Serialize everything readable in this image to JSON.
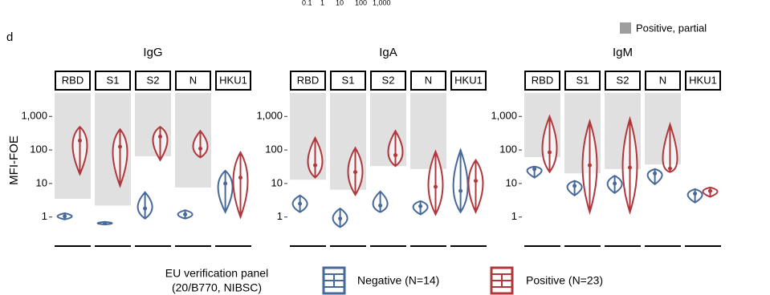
{
  "panel_label": "d",
  "fragment_ticks": [
    "0.1",
    "1",
    "10",
    "100",
    "1,000"
  ],
  "partial_legend": {
    "name": "Positive, partial",
    "color": "#9e9e9e"
  },
  "legend": {
    "title": [
      "EU verification panel",
      "(20/B770, NIBSC)"
    ],
    "items": [
      {
        "name": "Negative (N=14)",
        "color": "#46699a"
      },
      {
        "name": "Positive (N=23)",
        "color": "#b0383c"
      }
    ]
  },
  "chart_data": [
    {
      "type": "violin",
      "title": "IgG",
      "ylabel": "MFI-FOE",
      "log": true,
      "ylim": [
        0.2,
        5000
      ],
      "yticks": [
        1,
        10,
        100,
        {
          "value": 1000,
          "label": "1,000"
        }
      ],
      "facets": [
        "RBD",
        "S1",
        "S2",
        "N",
        "HKU1"
      ],
      "threshold_color": "#e0e0e0",
      "thresholds": [
        3.5,
        2.2,
        65,
        7.6,
        null
      ],
      "series": [
        {
          "color": "#46699a",
          "min": [
            0.85,
            0.6,
            0.9,
            0.9,
            1.4
          ],
          "median": [
            1.05,
            0.65,
            1.8,
            1.2,
            10
          ],
          "max": [
            1.3,
            0.72,
            5.5,
            1.6,
            24
          ]
        },
        {
          "color": "#b0383c",
          "min": [
            19,
            8.5,
            50,
            60,
            1.0
          ],
          "median": [
            190,
            125,
            250,
            110,
            15
          ],
          "max": [
            490,
            415,
            490,
            370,
            85
          ]
        }
      ]
    },
    {
      "type": "violin",
      "title": "IgA",
      "log": true,
      "ylim": [
        0.2,
        5000
      ],
      "yticks": [
        1,
        10,
        100,
        {
          "value": 1000,
          "label": "1,000"
        }
      ],
      "facets": [
        "RBD",
        "S1",
        "S2",
        "N",
        "HKU1"
      ],
      "threshold_color": "#e0e0e0",
      "thresholds": [
        13,
        6.5,
        33,
        27,
        null
      ],
      "series": [
        {
          "color": "#46699a",
          "min": [
            1.4,
            0.5,
            1.4,
            1.2,
            1.4
          ],
          "median": [
            2.5,
            0.9,
            2.2,
            2.1,
            6
          ],
          "max": [
            4.4,
            1.8,
            5.8,
            3,
            100
          ]
        },
        {
          "color": "#b0383c",
          "min": [
            15,
            4.6,
            33,
            1.2,
            1.4
          ],
          "median": [
            35,
            22,
            70,
            8,
            12
          ],
          "max": [
            230,
            115,
            370,
            90,
            50
          ]
        }
      ]
    },
    {
      "type": "violin",
      "title": "IgM",
      "log": true,
      "ylim": [
        0.2,
        5000
      ],
      "yticks": [
        1,
        10,
        100,
        {
          "value": 1000,
          "label": "1,000"
        }
      ],
      "facets": [
        "RBD",
        "S1",
        "S2",
        "N",
        "HKU1"
      ],
      "threshold_color": "#e0e0e0",
      "thresholds": [
        61,
        20,
        27,
        37,
        null
      ],
      "series": [
        {
          "color": "#46699a",
          "min": [
            15,
            4.4,
            5.2,
            9.5,
            2.7
          ],
          "median": [
            27,
            8.5,
            10,
            20,
            5
          ],
          "max": [
            32,
            12,
            17,
            27,
            6.8
          ]
        },
        {
          "color": "#b0383c",
          "min": [
            22,
            1.4,
            1.4,
            22,
            4
          ],
          "median": [
            85,
            35,
            30,
            28,
            6
          ],
          "max": [
            1000,
            720,
            850,
            580,
            7.6
          ]
        }
      ]
    }
  ]
}
